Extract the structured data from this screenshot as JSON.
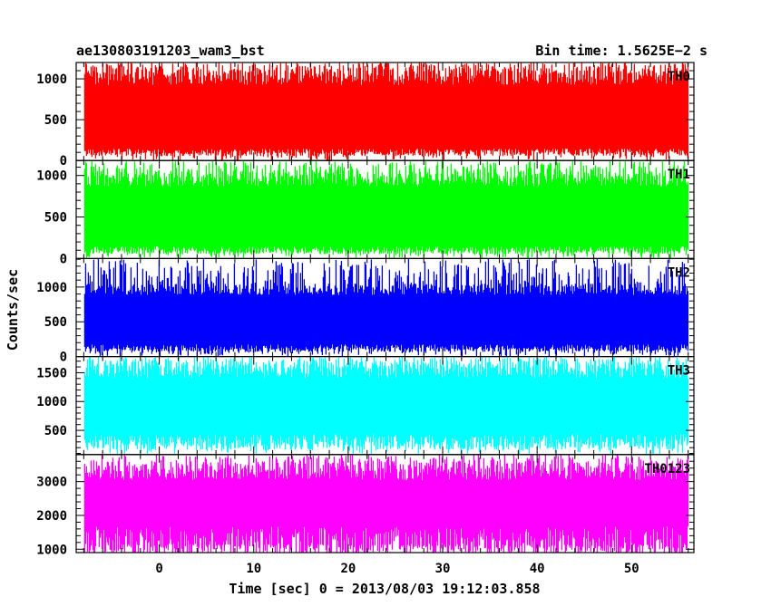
{
  "chart_data": {
    "type": "line",
    "title": "ae130803191203_wam3_bst",
    "subtitle": "Bin time: 1.5625E−2 s",
    "xlabel": "Time [sec] 0 = 2013/08/03 19:12:03.858",
    "ylabel": "Counts/sec",
    "xlim": [
      -8.8,
      56.6
    ],
    "x_data_range": [
      -7.9,
      56.0
    ],
    "xticks": [
      0,
      10,
      20,
      30,
      40,
      50
    ],
    "xtick_labels": [
      "0",
      "10",
      "20",
      "30",
      "40",
      "50"
    ],
    "grid": false,
    "panels": [
      {
        "name": "TH0",
        "color": "#ff0000",
        "ylim": [
          0,
          1200
        ],
        "yticks": [
          0,
          500,
          1000
        ],
        "ytick_labels": [
          "0",
          "500",
          "1000"
        ],
        "mean": 560,
        "band_low": 100,
        "band_high": 1120,
        "min_value": 0,
        "max_value": 1200
      },
      {
        "name": "TH1",
        "color": "#00ff00",
        "ylim": [
          0,
          1180
        ],
        "yticks": [
          0,
          500,
          1000
        ],
        "ytick_labels": [
          "0",
          "500",
          "1000"
        ],
        "mean": 560,
        "band_low": 100,
        "band_high": 1030,
        "min_value": 0,
        "max_value": 1180
      },
      {
        "name": "TH2",
        "color": "#0000ff",
        "ylim": [
          0,
          1410
        ],
        "yticks": [
          0,
          500,
          1000
        ],
        "ytick_labels": [
          "0",
          "500",
          "1000"
        ],
        "mean": 580,
        "band_low": 120,
        "band_high": 1050,
        "min_value": 0,
        "max_value": 1410
      },
      {
        "name": "TH3",
        "color": "#00ffff",
        "ylim": [
          80,
          1780
        ],
        "yticks": [
          500,
          1000,
          1500
        ],
        "ytick_labels": [
          "500",
          "1000",
          "1500"
        ],
        "mean": 950,
        "band_low": 300,
        "band_high": 1650,
        "min_value": 80,
        "max_value": 1780
      },
      {
        "name": "TH0123",
        "color": "#ff00ff",
        "ylim": [
          900,
          3800
        ],
        "yticks": [
          1000,
          2000,
          3000
        ],
        "ytick_labels": [
          "1000",
          "2000",
          "3000"
        ],
        "mean": 2200,
        "band_low": 1150,
        "band_high": 3500,
        "min_value": 900,
        "max_value": 3800
      }
    ]
  }
}
